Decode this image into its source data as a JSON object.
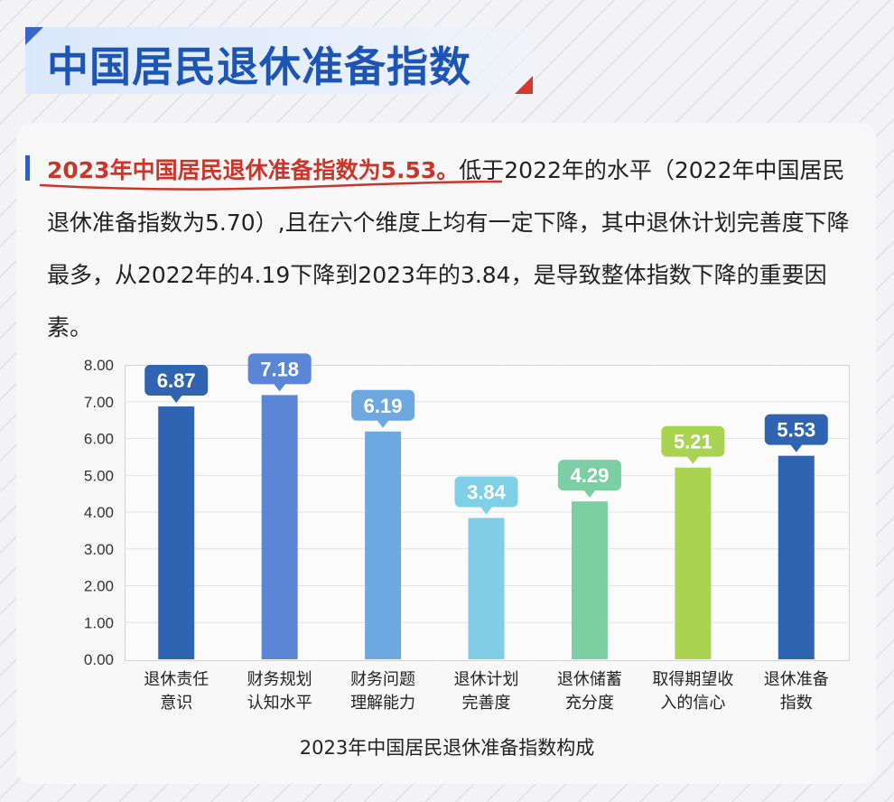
{
  "header": {
    "title": "中国居民退休准备指数"
  },
  "summary": {
    "highlight": "2023年中国居民退休准备指数为5.53。",
    "body": "低于2022年的水平（2022年中国居民退休准备指数为5.70）,且在六个维度上均有一定下降，其中退休计划完善度下降最多，从2022年的4.19下降到2023年的3.84，是导致整体指数下降的重要因素。"
  },
  "chart_data": {
    "type": "bar",
    "title": "2023年中国居民退休准备指数构成",
    "categories": [
      [
        "退休责任",
        "意识"
      ],
      [
        "财务规划",
        "认知水平"
      ],
      [
        "财务问题",
        "理解能力"
      ],
      [
        "退休计划",
        "完善度"
      ],
      [
        "退休储蓄",
        "充分度"
      ],
      [
        "取得期望收",
        "入的信心"
      ],
      [
        "退休准备",
        "指数"
      ]
    ],
    "values": [
      6.87,
      7.18,
      6.19,
      3.84,
      4.29,
      5.21,
      5.53
    ],
    "data_labels": [
      "6.87",
      "7.18",
      "6.19",
      "3.84",
      "4.29",
      "5.21",
      "5.53"
    ],
    "ylim": [
      0,
      8
    ],
    "yticks": [
      "0.00",
      "1.00",
      "2.00",
      "3.00",
      "4.00",
      "5.00",
      "6.00",
      "7.00",
      "8.00"
    ],
    "grid": true,
    "bar_colors": [
      "#2f64b2",
      "#5b86d8",
      "#6ea8e0",
      "#80cde6",
      "#7ccfa3",
      "#a8d452",
      "#2f64b2"
    ],
    "label_colors": [
      "#2f64b2",
      "#5b86d8",
      "#6ea8e0",
      "#7fcfe6",
      "#7ccfa3",
      "#a8d452",
      "#2f64b2"
    ]
  }
}
